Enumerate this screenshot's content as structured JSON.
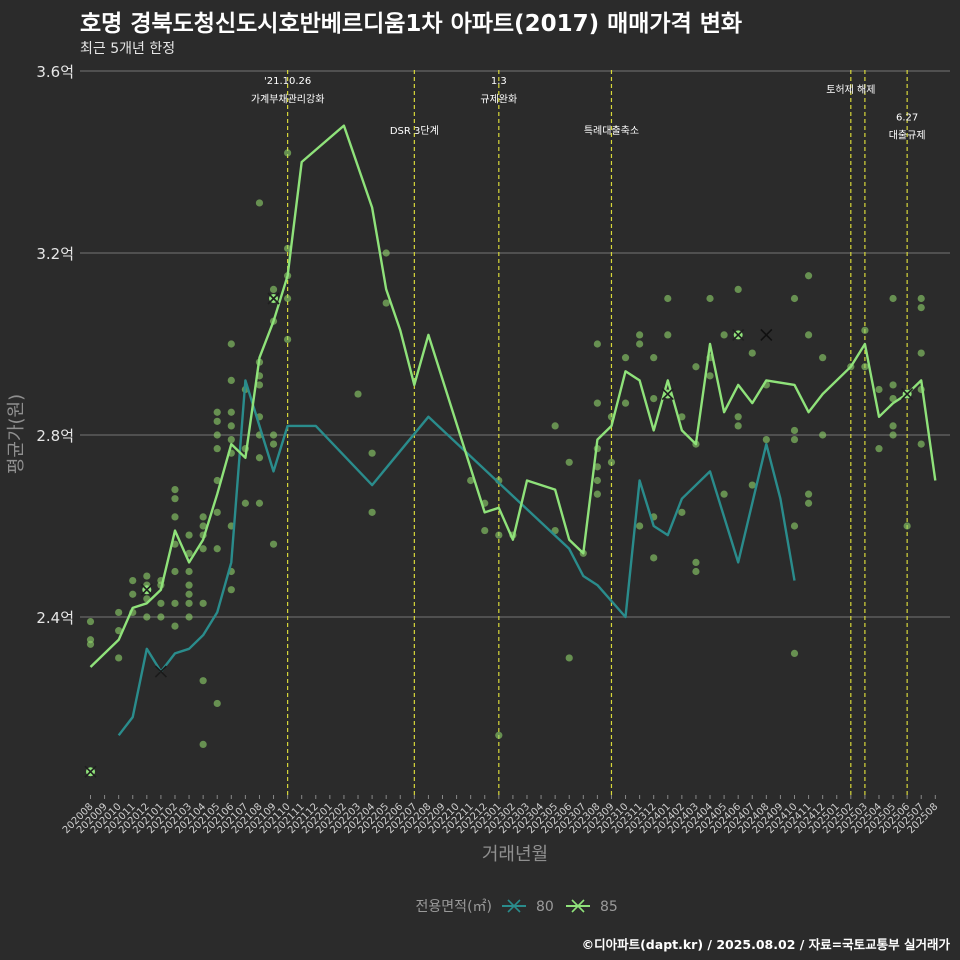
{
  "title": "호명 경북도청신도시호반베르디움1차 아파트(2017) 매매가격 변화",
  "subtitle": "최근 5개년 한정",
  "credit": "©디아파트(dapt.kr) / 2025.08.02 / 자료=국토교통부 실거래가",
  "colors": {
    "s80": "#2a8c8c",
    "s85": "#8fe27a",
    "grid": "#5c5c5c",
    "vline": "#d8d83a",
    "dot": "#8fd36a"
  },
  "chart_data": {
    "type": "line",
    "xlabel": "거래년월",
    "ylabel": "평균가(원)",
    "ylim": [
      2.0,
      3.6
    ],
    "yticks": [
      {
        "v": 2.4,
        "label": "2.4억"
      },
      {
        "v": 2.8,
        "label": "2.8억"
      },
      {
        "v": 3.2,
        "label": "3.2억"
      },
      {
        "v": 3.6,
        "label": "3.6억"
      }
    ],
    "categories": [
      "202008",
      "202009",
      "202010",
      "202011",
      "202012",
      "202101",
      "202102",
      "202103",
      "202104",
      "202105",
      "202106",
      "202107",
      "202108",
      "202109",
      "202110",
      "202111",
      "202112",
      "202201",
      "202202",
      "202203",
      "202204",
      "202205",
      "202206",
      "202207",
      "202208",
      "202209",
      "202210",
      "202211",
      "202212",
      "202301",
      "202302",
      "202303",
      "202304",
      "202305",
      "202306",
      "202307",
      "202308",
      "202309",
      "202310",
      "202311",
      "202312",
      "202401",
      "202402",
      "202403",
      "202404",
      "202405",
      "202406",
      "202407",
      "202408",
      "202409",
      "202410",
      "202411",
      "202412",
      "202501",
      "202502",
      "202503",
      "202504",
      "202505",
      "202506",
      "202507",
      "202508"
    ],
    "series": [
      {
        "name": "80",
        "points": [
          [
            "202010",
            2.14
          ],
          [
            "202011",
            2.18
          ],
          [
            "202012",
            2.33
          ],
          [
            "202101",
            2.28
          ],
          [
            "202102",
            2.32
          ],
          [
            "202103",
            2.33
          ],
          [
            "202104",
            2.36
          ],
          [
            "202105",
            2.41
          ],
          [
            "202106",
            2.52
          ],
          [
            "202107",
            2.92
          ],
          [
            "202109",
            2.72
          ],
          [
            "202110",
            2.82
          ],
          [
            "202111",
            2.82
          ],
          [
            "202112",
            2.82
          ],
          [
            "202204",
            2.69
          ],
          [
            "202208",
            2.84
          ],
          [
            "202306",
            2.55
          ],
          [
            "202307",
            2.49
          ],
          [
            "202308",
            2.47
          ],
          [
            "202310",
            2.4
          ],
          [
            "202311",
            2.7
          ],
          [
            "202312",
            2.6
          ],
          [
            "202401",
            2.58
          ],
          [
            "202402",
            2.66
          ],
          [
            "202404",
            2.72
          ],
          [
            "202406",
            2.52
          ],
          [
            "202408",
            2.78
          ],
          [
            "202409",
            2.66
          ],
          [
            "202410",
            2.48
          ]
        ]
      },
      {
        "name": "85",
        "points": [
          [
            "202008",
            2.29
          ],
          [
            "202009",
            2.32
          ],
          [
            "202010",
            2.35
          ],
          [
            "202011",
            2.42
          ],
          [
            "202012",
            2.43
          ],
          [
            "202101",
            2.46
          ],
          [
            "202102",
            2.59
          ],
          [
            "202103",
            2.52
          ],
          [
            "202104",
            2.57
          ],
          [
            "202105",
            2.67
          ],
          [
            "202106",
            2.78
          ],
          [
            "202107",
            2.75
          ],
          [
            "202108",
            2.97
          ],
          [
            "202109",
            3.05
          ],
          [
            "202110",
            3.15
          ],
          [
            "202111",
            3.4
          ],
          [
            "202202",
            3.48
          ],
          [
            "202204",
            3.3
          ],
          [
            "202205",
            3.12
          ],
          [
            "202206",
            3.03
          ],
          [
            "202207",
            2.91
          ],
          [
            "202208",
            3.02
          ],
          [
            "202212",
            2.63
          ],
          [
            "202301",
            2.64
          ],
          [
            "202302",
            2.57
          ],
          [
            "202303",
            2.7
          ],
          [
            "202305",
            2.68
          ],
          [
            "202306",
            2.57
          ],
          [
            "202307",
            2.54
          ],
          [
            "202308",
            2.79
          ],
          [
            "202309",
            2.82
          ],
          [
            "202310",
            2.94
          ],
          [
            "202311",
            2.92
          ],
          [
            "202312",
            2.81
          ],
          [
            "202401",
            2.92
          ],
          [
            "202402",
            2.81
          ],
          [
            "202403",
            2.78
          ],
          [
            "202404",
            3.0
          ],
          [
            "202405",
            2.85
          ],
          [
            "202406",
            2.91
          ],
          [
            "202407",
            2.87
          ],
          [
            "202408",
            2.92
          ],
          [
            "202410",
            2.91
          ],
          [
            "202411",
            2.85
          ],
          [
            "202412",
            2.89
          ],
          [
            "202502",
            2.95
          ],
          [
            "202503",
            3.0
          ],
          [
            "202504",
            2.84
          ],
          [
            "202505",
            2.87
          ],
          [
            "202506",
            2.89
          ],
          [
            "202507",
            2.92
          ],
          [
            "202508",
            2.7
          ]
        ]
      }
    ],
    "scatter_points": [
      [
        "202008",
        2.39
      ],
      [
        "202008",
        2.35
      ],
      [
        "202008",
        2.34
      ],
      [
        "202010",
        2.41
      ],
      [
        "202010",
        2.37
      ],
      [
        "202010",
        2.31
      ],
      [
        "202011",
        2.48
      ],
      [
        "202011",
        2.45
      ],
      [
        "202011",
        2.41
      ],
      [
        "202012",
        2.49
      ],
      [
        "202012",
        2.47
      ],
      [
        "202012",
        2.44
      ],
      [
        "202012",
        2.4
      ],
      [
        "202101",
        2.48
      ],
      [
        "202101",
        2.43
      ],
      [
        "202101",
        2.4
      ],
      [
        "202101",
        2.47
      ],
      [
        "202102",
        2.68
      ],
      [
        "202102",
        2.66
      ],
      [
        "202102",
        2.62
      ],
      [
        "202102",
        2.56
      ],
      [
        "202102",
        2.5
      ],
      [
        "202102",
        2.43
      ],
      [
        "202102",
        2.38
      ],
      [
        "202103",
        2.58
      ],
      [
        "202103",
        2.54
      ],
      [
        "202103",
        2.5
      ],
      [
        "202103",
        2.47
      ],
      [
        "202103",
        2.45
      ],
      [
        "202103",
        2.43
      ],
      [
        "202103",
        2.4
      ],
      [
        "202104",
        2.62
      ],
      [
        "202104",
        2.6
      ],
      [
        "202104",
        2.58
      ],
      [
        "202104",
        2.55
      ],
      [
        "202104",
        2.43
      ],
      [
        "202104",
        2.26
      ],
      [
        "202104",
        2.12
      ],
      [
        "202105",
        2.85
      ],
      [
        "202105",
        2.83
      ],
      [
        "202105",
        2.8
      ],
      [
        "202105",
        2.77
      ],
      [
        "202105",
        2.7
      ],
      [
        "202105",
        2.63
      ],
      [
        "202105",
        2.55
      ],
      [
        "202105",
        2.21
      ],
      [
        "202106",
        3.0
      ],
      [
        "202106",
        2.92
      ],
      [
        "202106",
        2.85
      ],
      [
        "202106",
        2.82
      ],
      [
        "202106",
        2.79
      ],
      [
        "202106",
        2.76
      ],
      [
        "202106",
        2.6
      ],
      [
        "202106",
        2.5
      ],
      [
        "202106",
        2.46
      ],
      [
        "202107",
        2.9
      ],
      [
        "202107",
        2.77
      ],
      [
        "202107",
        2.65
      ],
      [
        "202108",
        2.96
      ],
      [
        "202108",
        2.93
      ],
      [
        "202108",
        2.91
      ],
      [
        "202108",
        2.84
      ],
      [
        "202108",
        2.8
      ],
      [
        "202108",
        2.75
      ],
      [
        "202108",
        3.31
      ],
      [
        "202108",
        2.65
      ],
      [
        "202109",
        3.12
      ],
      [
        "202109",
        3.05
      ],
      [
        "202109",
        2.8
      ],
      [
        "202109",
        2.78
      ],
      [
        "202109",
        2.56
      ],
      [
        "202110",
        3.42
      ],
      [
        "202110",
        3.21
      ],
      [
        "202110",
        3.15
      ],
      [
        "202110",
        3.1
      ],
      [
        "202110",
        3.01
      ],
      [
        "202203",
        2.89
      ],
      [
        "202204",
        2.76
      ],
      [
        "202204",
        2.63
      ],
      [
        "202205",
        3.2
      ],
      [
        "202205",
        3.09
      ],
      [
        "202211",
        2.7
      ],
      [
        "202212",
        2.65
      ],
      [
        "202212",
        2.59
      ],
      [
        "202301",
        2.7
      ],
      [
        "202301",
        2.58
      ],
      [
        "202301",
        2.14
      ],
      [
        "202302",
        2.58
      ],
      [
        "202305",
        2.82
      ],
      [
        "202305",
        2.59
      ],
      [
        "202306",
        2.74
      ],
      [
        "202306",
        2.31
      ],
      [
        "202307",
        2.54
      ],
      [
        "202308",
        3.0
      ],
      [
        "202308",
        2.87
      ],
      [
        "202308",
        2.77
      ],
      [
        "202308",
        2.73
      ],
      [
        "202308",
        2.7
      ],
      [
        "202308",
        2.67
      ],
      [
        "202309",
        2.74
      ],
      [
        "202309",
        2.84
      ],
      [
        "202310",
        2.97
      ],
      [
        "202310",
        2.87
      ],
      [
        "202311",
        3.0
      ],
      [
        "202311",
        3.02
      ],
      [
        "202311",
        2.6
      ],
      [
        "202312",
        2.97
      ],
      [
        "202312",
        2.88
      ],
      [
        "202312",
        2.62
      ],
      [
        "202312",
        2.53
      ],
      [
        "202401",
        3.1
      ],
      [
        "202401",
        3.02
      ],
      [
        "202401",
        2.89
      ],
      [
        "202402",
        2.84
      ],
      [
        "202402",
        2.63
      ],
      [
        "202403",
        2.95
      ],
      [
        "202403",
        2.78
      ],
      [
        "202403",
        2.52
      ],
      [
        "202403",
        2.5
      ],
      [
        "202404",
        3.1
      ],
      [
        "202404",
        2.97
      ],
      [
        "202404",
        2.93
      ],
      [
        "202405",
        3.02
      ],
      [
        "202405",
        2.67
      ],
      [
        "202406",
        3.12
      ],
      [
        "202406",
        2.84
      ],
      [
        "202406",
        2.82
      ],
      [
        "202407",
        2.98
      ],
      [
        "202407",
        2.69
      ],
      [
        "202408",
        2.91
      ],
      [
        "202408",
        2.79
      ],
      [
        "202410",
        3.1
      ],
      [
        "202410",
        2.81
      ],
      [
        "202410",
        2.79
      ],
      [
        "202410",
        2.6
      ],
      [
        "202410",
        2.32
      ],
      [
        "202411",
        3.15
      ],
      [
        "202411",
        3.02
      ],
      [
        "202411",
        2.67
      ],
      [
        "202411",
        2.65
      ],
      [
        "202412",
        2.97
      ],
      [
        "202412",
        2.8
      ],
      [
        "202502",
        2.95
      ],
      [
        "202503",
        3.03
      ],
      [
        "202503",
        2.95
      ],
      [
        "202504",
        2.77
      ],
      [
        "202504",
        2.9
      ],
      [
        "202505",
        3.1
      ],
      [
        "202505",
        2.91
      ],
      [
        "202505",
        2.88
      ],
      [
        "202505",
        2.82
      ],
      [
        "202505",
        2.8
      ],
      [
        "202506",
        2.6
      ],
      [
        "202507",
        3.1
      ],
      [
        "202507",
        3.08
      ],
      [
        "202507",
        2.98
      ],
      [
        "202507",
        2.9
      ],
      [
        "202507",
        2.78
      ]
    ],
    "markers_80": [
      [
        "202101",
        2.28
      ]
    ],
    "markers_85": [
      [
        "202008",
        2.06
      ],
      [
        "202012",
        2.46
      ],
      [
        "202109",
        3.1
      ],
      [
        "202401",
        2.89
      ],
      [
        "202406",
        3.02
      ],
      [
        "202506",
        2.89
      ]
    ],
    "markers_plain": [
      [
        "202408",
        3.02
      ]
    ],
    "vlines": [
      "202110",
      "202207",
      "202301",
      "202309",
      "202502",
      "202503",
      "202506"
    ],
    "annotations": [
      {
        "x": "202110",
        "y": 3.58,
        "text": "'21.10.26"
      },
      {
        "x": "202110",
        "y": 3.54,
        "text": "가계부채관리강화"
      },
      {
        "x": "202207",
        "y": 3.47,
        "text": "DSR 3단계"
      },
      {
        "x": "202301",
        "y": 3.58,
        "text": "1.3"
      },
      {
        "x": "202301",
        "y": 3.54,
        "text": "규제완화"
      },
      {
        "x": "202309",
        "y": 3.47,
        "text": "특례대출축소"
      },
      {
        "x": "202502",
        "y": 3.56,
        "text": "토허제 해제"
      },
      {
        "x": "202506",
        "y": 3.5,
        "text": "6.27"
      },
      {
        "x": "202506",
        "y": 3.46,
        "text": "대출규제"
      }
    ],
    "legend": {
      "title": "전용면적(㎡)",
      "items": [
        "80",
        "85"
      ]
    }
  }
}
